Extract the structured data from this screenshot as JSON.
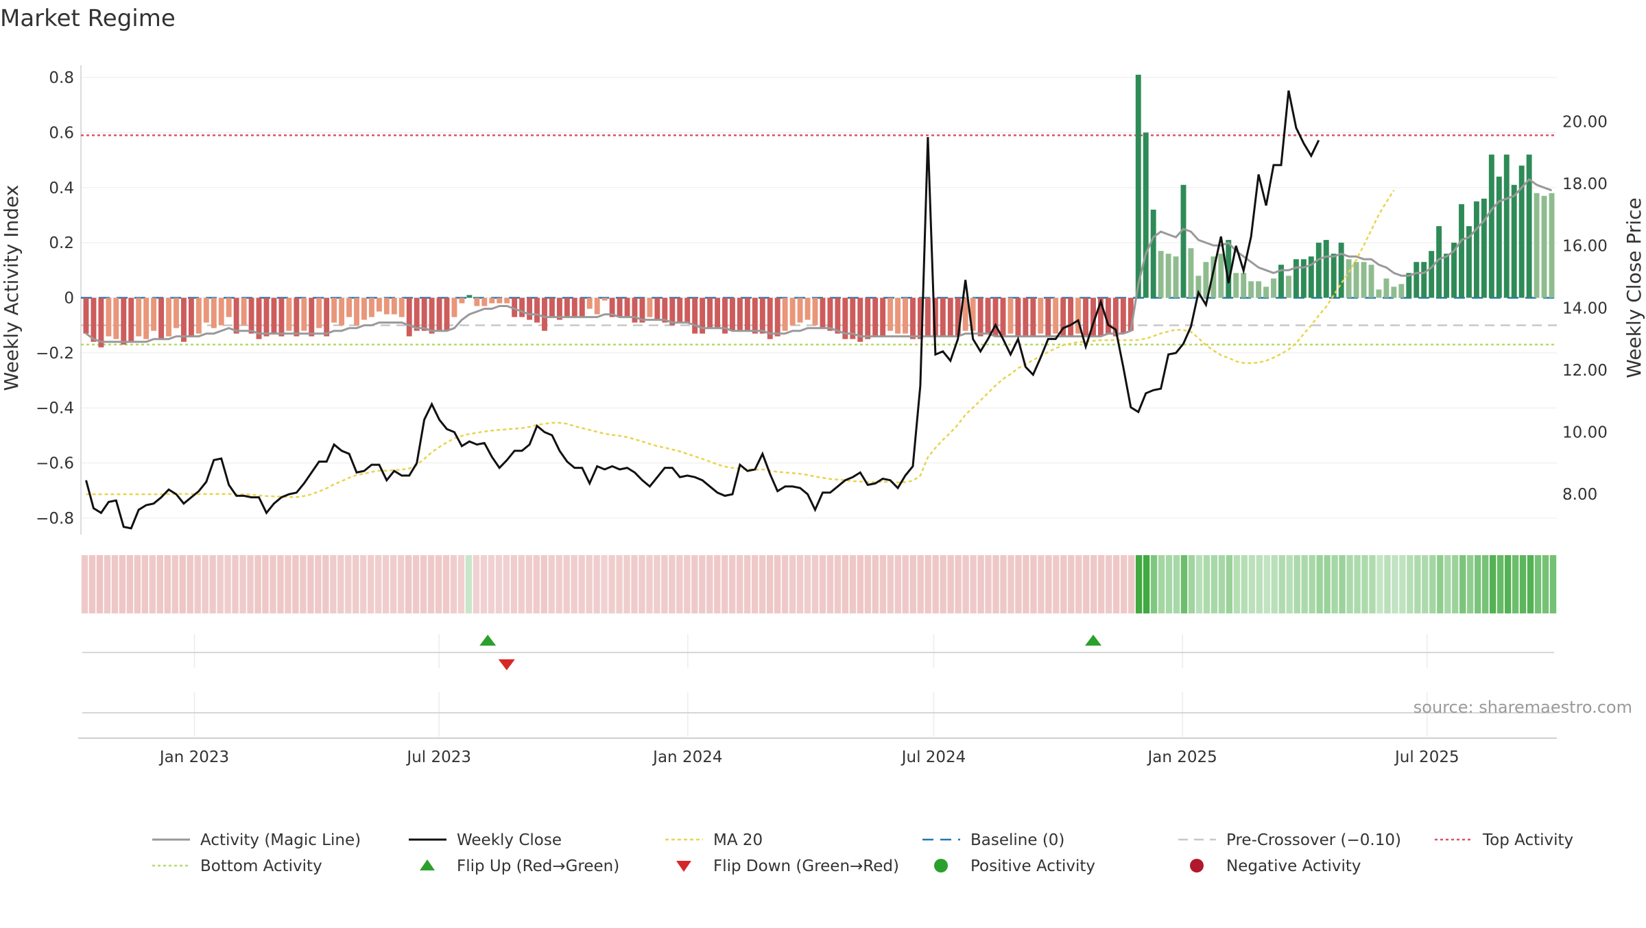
{
  "chart_data": {
    "type": "bar",
    "title": "Market Regime",
    "ylabel": "Weekly Activity Index",
    "y2label": "Weekly Close Price",
    "ylim": [
      -0.86,
      0.82
    ],
    "y2lim": [
      6.7,
      21.6
    ],
    "y_ticks": [
      "0.8",
      "0.6",
      "0.4",
      "0.2",
      "0",
      "−0.2",
      "−0.4",
      "−0.6",
      "−0.8"
    ],
    "y2_ticks": [
      "20.00",
      "18.00",
      "16.00",
      "14.00",
      "12.00",
      "10.00",
      "8.00"
    ],
    "x_ticks": [
      "Jan 2023",
      "Jul 2023",
      "Jan 2024",
      "Jul 2024",
      "Jan 2025",
      "Jul 2025"
    ],
    "x_start": "2022-10-09",
    "x_end": "2025-10-05",
    "grid": true,
    "legend_position": "bottom",
    "source": "source: sharemaestro.com",
    "reference_lines": {
      "top_activity": 0.59,
      "baseline": 0,
      "pre_crossover": -0.1,
      "bottom_activity": -0.17
    },
    "colors": {
      "strong_red": "#cd5c5c",
      "light_red": "#e9967a",
      "strong_green": "#2e8b57",
      "light_green": "#8fbc8f",
      "magic_line": "#999999",
      "close": "#111111",
      "ma20": "#e8d44d",
      "baseline": "#1f77b4",
      "pre_crossover": "#c8c8c8",
      "top_activity": "#d9506b",
      "bottom_activity": "#b5d96a",
      "flip_up": "#2ca02c",
      "flip_down": "#d62728",
      "positive": "#2ca02c",
      "negative": "#b2182b"
    },
    "activity": [
      -0.13,
      -0.16,
      -0.18,
      -0.14,
      -0.15,
      -0.17,
      -0.16,
      -0.14,
      -0.15,
      -0.12,
      -0.15,
      -0.14,
      -0.11,
      -0.16,
      -0.14,
      -0.13,
      -0.09,
      -0.11,
      -0.1,
      -0.07,
      -0.13,
      -0.1,
      -0.13,
      -0.15,
      -0.14,
      -0.13,
      -0.14,
      -0.12,
      -0.14,
      -0.12,
      -0.14,
      -0.11,
      -0.14,
      -0.09,
      -0.1,
      -0.07,
      -0.1,
      -0.08,
      -0.07,
      -0.05,
      -0.06,
      -0.06,
      -0.07,
      -0.14,
      -0.12,
      -0.12,
      -0.13,
      -0.12,
      -0.12,
      -0.07,
      -0.02,
      0.01,
      -0.03,
      -0.03,
      -0.02,
      -0.02,
      -0.02,
      -0.07,
      -0.07,
      -0.08,
      -0.09,
      -0.12,
      -0.07,
      -0.08,
      -0.07,
      -0.07,
      -0.07,
      -0.04,
      -0.06,
      -0.01,
      -0.07,
      -0.07,
      -0.07,
      -0.09,
      -0.09,
      -0.07,
      -0.08,
      -0.09,
      -0.1,
      -0.09,
      -0.09,
      -0.13,
      -0.13,
      -0.11,
      -0.11,
      -0.13,
      -0.12,
      -0.12,
      -0.12,
      -0.13,
      -0.13,
      -0.15,
      -0.14,
      -0.12,
      -0.1,
      -0.09,
      -0.08,
      -0.1,
      -0.11,
      -0.12,
      -0.13,
      -0.15,
      -0.15,
      -0.16,
      -0.15,
      -0.14,
      -0.14,
      -0.12,
      -0.13,
      -0.13,
      -0.15,
      -0.15,
      -0.14,
      -0.14,
      -0.14,
      -0.14,
      -0.14,
      -0.12,
      -0.12,
      -0.14,
      -0.13,
      -0.14,
      -0.14,
      -0.13,
      -0.14,
      -0.14,
      -0.14,
      -0.13,
      -0.14,
      -0.13,
      -0.14,
      -0.14,
      -0.13,
      -0.14,
      -0.14,
      -0.14,
      -0.13,
      -0.14,
      -0.13,
      -0.12,
      0.81,
      0.6,
      0.32,
      0.17,
      0.16,
      0.15,
      0.41,
      0.18,
      0.08,
      0.13,
      0.15,
      0.16,
      0.21,
      0.09,
      0.09,
      0.06,
      0.06,
      0.04,
      0.07,
      0.12,
      0.08,
      0.14,
      0.14,
      0.15,
      0.2,
      0.21,
      0.16,
      0.2,
      0.14,
      0.13,
      0.13,
      0.12,
      0.03,
      0.07,
      0.04,
      0.05,
      0.09,
      0.13,
      0.13,
      0.17,
      0.26,
      0.16,
      0.2,
      0.34,
      0.26,
      0.35,
      0.36,
      0.52,
      0.44,
      0.52,
      0.41,
      0.48,
      0.52,
      0.38,
      0.37,
      0.38
    ],
    "activity_series_colors": "bars: negative weeks red, positive weeks green; darker shade for stronger weeks",
    "close": [
      8.45,
      7.55,
      7.4,
      7.75,
      7.8,
      6.95,
      6.9,
      7.5,
      7.65,
      7.7,
      7.9,
      8.15,
      8.0,
      7.7,
      7.9,
      8.1,
      8.4,
      9.1,
      9.15,
      8.3,
      7.95,
      7.95,
      7.9,
      7.9,
      7.4,
      7.7,
      7.9,
      8.0,
      8.05,
      8.35,
      8.7,
      9.05,
      9.05,
      9.6,
      9.4,
      9.3,
      8.7,
      8.75,
      8.95,
      8.95,
      8.45,
      8.75,
      8.6,
      8.6,
      9.0,
      10.4,
      10.9,
      10.4,
      10.1,
      10.0,
      9.55,
      9.7,
      9.6,
      9.65,
      9.2,
      8.85,
      9.1,
      9.4,
      9.4,
      9.6,
      10.2,
      10.0,
      9.9,
      9.4,
      9.05,
      8.85,
      8.85,
      8.35,
      8.9,
      8.8,
      8.9,
      8.8,
      8.85,
      8.7,
      8.45,
      8.25,
      8.55,
      8.85,
      8.85,
      8.55,
      8.6,
      8.55,
      8.45,
      8.25,
      8.05,
      7.95,
      8.0,
      8.95,
      8.75,
      8.8,
      9.3,
      8.65,
      8.1,
      8.25,
      8.25,
      8.2,
      8.0,
      7.5,
      8.05,
      8.05,
      8.25,
      8.45,
      8.55,
      8.7,
      8.3,
      8.35,
      8.5,
      8.45,
      8.2,
      8.6,
      8.9,
      11.5,
      19.5,
      12.5,
      12.6,
      12.3,
      13.0,
      14.9,
      13.0,
      12.6,
      13.0,
      13.45,
      13.0,
      12.5,
      13.0,
      12.1,
      11.85,
      12.4,
      13.0,
      13.0,
      13.35,
      13.45,
      13.6,
      12.75,
      13.5,
      14.2,
      13.45,
      13.3,
      12.1,
      10.8,
      10.65,
      11.25,
      11.35,
      11.4,
      12.5,
      12.55,
      12.85,
      13.4,
      14.5,
      14.1,
      15.2,
      16.3,
      14.8,
      16.0,
      15.2,
      16.3,
      18.3,
      17.3,
      18.6,
      18.6,
      21.0,
      19.8,
      19.3,
      18.9,
      19.4
    ],
    "ma20": [
      8.0,
      8.0,
      8.0,
      8.0,
      8.0,
      8.0,
      8.0,
      8.0,
      8.0,
      8.0,
      8.0,
      8.01,
      8.01,
      8.01,
      8.01,
      8.01,
      8.01,
      8.01,
      8.01,
      8.01,
      8.0,
      8.0,
      7.99,
      7.96,
      7.94,
      7.93,
      7.92,
      7.91,
      7.91,
      7.94,
      8.0,
      8.09,
      8.19,
      8.32,
      8.42,
      8.53,
      8.62,
      8.66,
      8.72,
      8.76,
      8.76,
      8.78,
      8.79,
      8.83,
      8.94,
      9.14,
      9.35,
      9.52,
      9.67,
      9.8,
      9.88,
      9.94,
      9.98,
      10.02,
      10.05,
      10.07,
      10.09,
      10.11,
      10.13,
      10.17,
      10.23,
      10.27,
      10.3,
      10.3,
      10.27,
      10.19,
      10.13,
      10.07,
      10.01,
      9.95,
      9.91,
      9.88,
      9.84,
      9.77,
      9.7,
      9.62,
      9.55,
      9.5,
      9.44,
      9.38,
      9.3,
      9.22,
      9.14,
      9.05,
      8.96,
      8.89,
      8.85,
      8.83,
      8.81,
      8.79,
      8.8,
      8.76,
      8.72,
      8.7,
      8.68,
      8.66,
      8.62,
      8.57,
      8.53,
      8.49,
      8.47,
      8.45,
      8.42,
      8.41,
      8.39,
      8.39,
      8.4,
      8.39,
      8.38,
      8.39,
      8.43,
      8.6,
      9.19,
      9.49,
      9.75,
      9.98,
      10.24,
      10.56,
      10.79,
      11.02,
      11.26,
      11.5,
      11.71,
      11.87,
      12.06,
      12.19,
      12.32,
      12.45,
      12.58,
      12.7,
      12.8,
      12.85,
      12.9,
      12.91,
      12.94,
      12.96,
      12.96,
      12.96,
      12.96,
      12.96,
      12.97,
      13.01,
      13.09,
      13.18,
      13.24,
      13.3,
      13.29,
      13.23,
      13.03,
      12.8,
      12.63,
      12.48,
      12.39,
      12.28,
      12.23,
      12.22,
      12.24,
      12.3,
      12.4,
      12.52,
      12.66,
      12.87,
      13.16,
      13.44,
      13.76,
      14.04,
      14.41,
      14.79,
      15.15,
      15.55,
      16.02,
      16.51,
      17.01,
      17.41,
      17.79
    ],
    "magic_line": [
      -0.13,
      -0.15,
      -0.16,
      -0.16,
      -0.16,
      -0.16,
      -0.16,
      -0.16,
      -0.16,
      -0.15,
      -0.15,
      -0.15,
      -0.14,
      -0.14,
      -0.14,
      -0.14,
      -0.13,
      -0.13,
      -0.12,
      -0.11,
      -0.12,
      -0.12,
      -0.12,
      -0.13,
      -0.13,
      -0.13,
      -0.13,
      -0.13,
      -0.13,
      -0.13,
      -0.13,
      -0.13,
      -0.13,
      -0.12,
      -0.12,
      -0.11,
      -0.11,
      -0.1,
      -0.1,
      -0.09,
      -0.09,
      -0.09,
      -0.09,
      -0.1,
      -0.11,
      -0.11,
      -0.12,
      -0.12,
      -0.12,
      -0.11,
      -0.08,
      -0.06,
      -0.05,
      -0.04,
      -0.04,
      -0.03,
      -0.03,
      -0.04,
      -0.05,
      -0.06,
      -0.06,
      -0.07,
      -0.07,
      -0.07,
      -0.07,
      -0.07,
      -0.07,
      -0.07,
      -0.07,
      -0.06,
      -0.06,
      -0.07,
      -0.07,
      -0.07,
      -0.08,
      -0.08,
      -0.08,
      -0.08,
      -0.09,
      -0.09,
      -0.09,
      -0.1,
      -0.11,
      -0.11,
      -0.11,
      -0.11,
      -0.12,
      -0.12,
      -0.12,
      -0.12,
      -0.12,
      -0.13,
      -0.13,
      -0.13,
      -0.12,
      -0.12,
      -0.11,
      -0.11,
      -0.11,
      -0.11,
      -0.12,
      -0.13,
      -0.13,
      -0.14,
      -0.14,
      -0.14,
      -0.14,
      -0.14,
      -0.14,
      -0.14,
      -0.14,
      -0.14,
      -0.14,
      -0.14,
      -0.14,
      -0.14,
      -0.14,
      -0.13,
      -0.13,
      -0.13,
      -0.13,
      -0.14,
      -0.14,
      -0.14,
      -0.14,
      -0.14,
      -0.14,
      -0.14,
      -0.14,
      -0.14,
      -0.14,
      -0.14,
      -0.14,
      -0.14,
      -0.14,
      -0.14,
      -0.13,
      -0.13,
      -0.13,
      -0.12,
      0.05,
      0.16,
      0.22,
      0.24,
      0.23,
      0.22,
      0.25,
      0.24,
      0.21,
      0.2,
      0.19,
      0.19,
      0.2,
      0.17,
      0.15,
      0.13,
      0.11,
      0.1,
      0.09,
      0.1,
      0.1,
      0.11,
      0.11,
      0.12,
      0.14,
      0.15,
      0.15,
      0.16,
      0.15,
      0.15,
      0.14,
      0.14,
      0.12,
      0.11,
      0.09,
      0.08,
      0.08,
      0.09,
      0.09,
      0.11,
      0.14,
      0.15,
      0.17,
      0.21,
      0.22,
      0.25,
      0.28,
      0.32,
      0.35,
      0.36,
      0.37,
      0.4,
      0.43,
      0.41,
      0.4,
      0.39
    ],
    "flip_up": [
      {
        "x": "2023-08-06",
        "label": "Flip Up (Red→Green)"
      },
      {
        "x": "2024-10-27",
        "label": "Flip Up (Red→Green)"
      }
    ],
    "flip_down": [
      {
        "x": "2023-08-20",
        "label": "Flip Down (Green→Red)"
      }
    ],
    "legend": [
      {
        "key": "magic",
        "label": "Activity (Magic Line)"
      },
      {
        "key": "close",
        "label": "Weekly Close"
      },
      {
        "key": "ma20",
        "label": "MA 20"
      },
      {
        "key": "baseline",
        "label": "Baseline (0)"
      },
      {
        "key": "pre",
        "label": "Pre-Crossover (−0.10)"
      },
      {
        "key": "top",
        "label": "Top Activity"
      },
      {
        "key": "bottom",
        "label": "Bottom Activity"
      },
      {
        "key": "flipup",
        "label": "Flip Up (Red→Green)"
      },
      {
        "key": "flipdown",
        "label": "Flip Down (Green→Red)"
      },
      {
        "key": "pos",
        "label": "Positive Activity"
      },
      {
        "key": "neg",
        "label": "Negative Activity"
      }
    ]
  }
}
